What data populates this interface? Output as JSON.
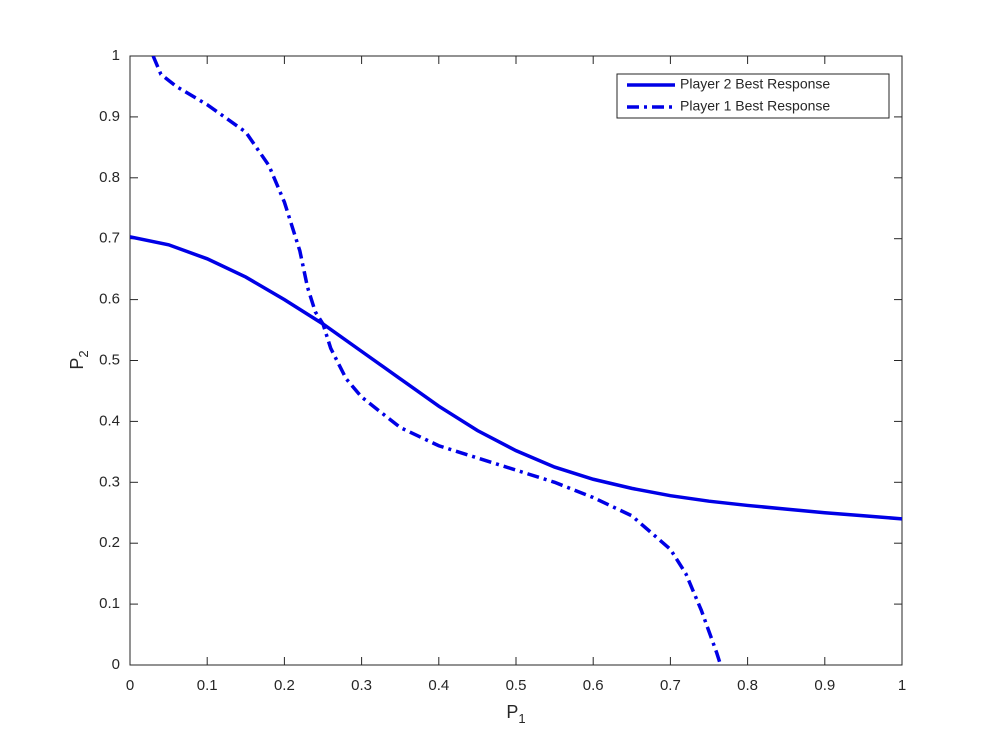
{
  "chart_data": {
    "type": "line",
    "xlabel": {
      "base": "P",
      "sub": "1"
    },
    "ylabel": {
      "base": "P",
      "sub": "2"
    },
    "xlim": [
      0,
      1
    ],
    "ylim": [
      0,
      1
    ],
    "xticks": [
      0,
      0.1,
      0.2,
      0.3,
      0.4,
      0.5,
      0.6,
      0.7,
      0.8,
      0.9,
      1
    ],
    "yticks": [
      0,
      0.1,
      0.2,
      0.3,
      0.4,
      0.5,
      0.6,
      0.7,
      0.8,
      0.9,
      1
    ],
    "legend": "northeast",
    "box": true,
    "series": [
      {
        "name": "Player 2 Best Response",
        "color": "#0000e6",
        "style": "solid",
        "x": [
          0,
          0.05,
          0.1,
          0.15,
          0.2,
          0.25,
          0.3,
          0.35,
          0.4,
          0.45,
          0.5,
          0.55,
          0.6,
          0.65,
          0.7,
          0.75,
          0.8,
          0.85,
          0.9,
          0.95,
          1
        ],
        "values": [
          0.703,
          0.69,
          0.667,
          0.637,
          0.6,
          0.56,
          0.515,
          0.47,
          0.425,
          0.385,
          0.352,
          0.325,
          0.305,
          0.29,
          0.278,
          0.269,
          0.262,
          0.256,
          0.25,
          0.245,
          0.24
        ]
      },
      {
        "name": "Player 1 Best Response",
        "color": "#0000e6",
        "style": "dashdot",
        "x": [
          0.03,
          0.04,
          0.06,
          0.1,
          0.15,
          0.18,
          0.2,
          0.22,
          0.23,
          0.24,
          0.25,
          0.26,
          0.28,
          0.3,
          0.35,
          0.4,
          0.45,
          0.5,
          0.55,
          0.6,
          0.65,
          0.7,
          0.72,
          0.74,
          0.76,
          0.765
        ],
        "values": [
          1,
          0.97,
          0.95,
          0.92,
          0.875,
          0.82,
          0.76,
          0.68,
          0.62,
          0.58,
          0.56,
          0.52,
          0.47,
          0.44,
          0.39,
          0.36,
          0.34,
          0.32,
          0.3,
          0.275,
          0.245,
          0.19,
          0.15,
          0.09,
          0.02,
          0
        ]
      }
    ]
  }
}
